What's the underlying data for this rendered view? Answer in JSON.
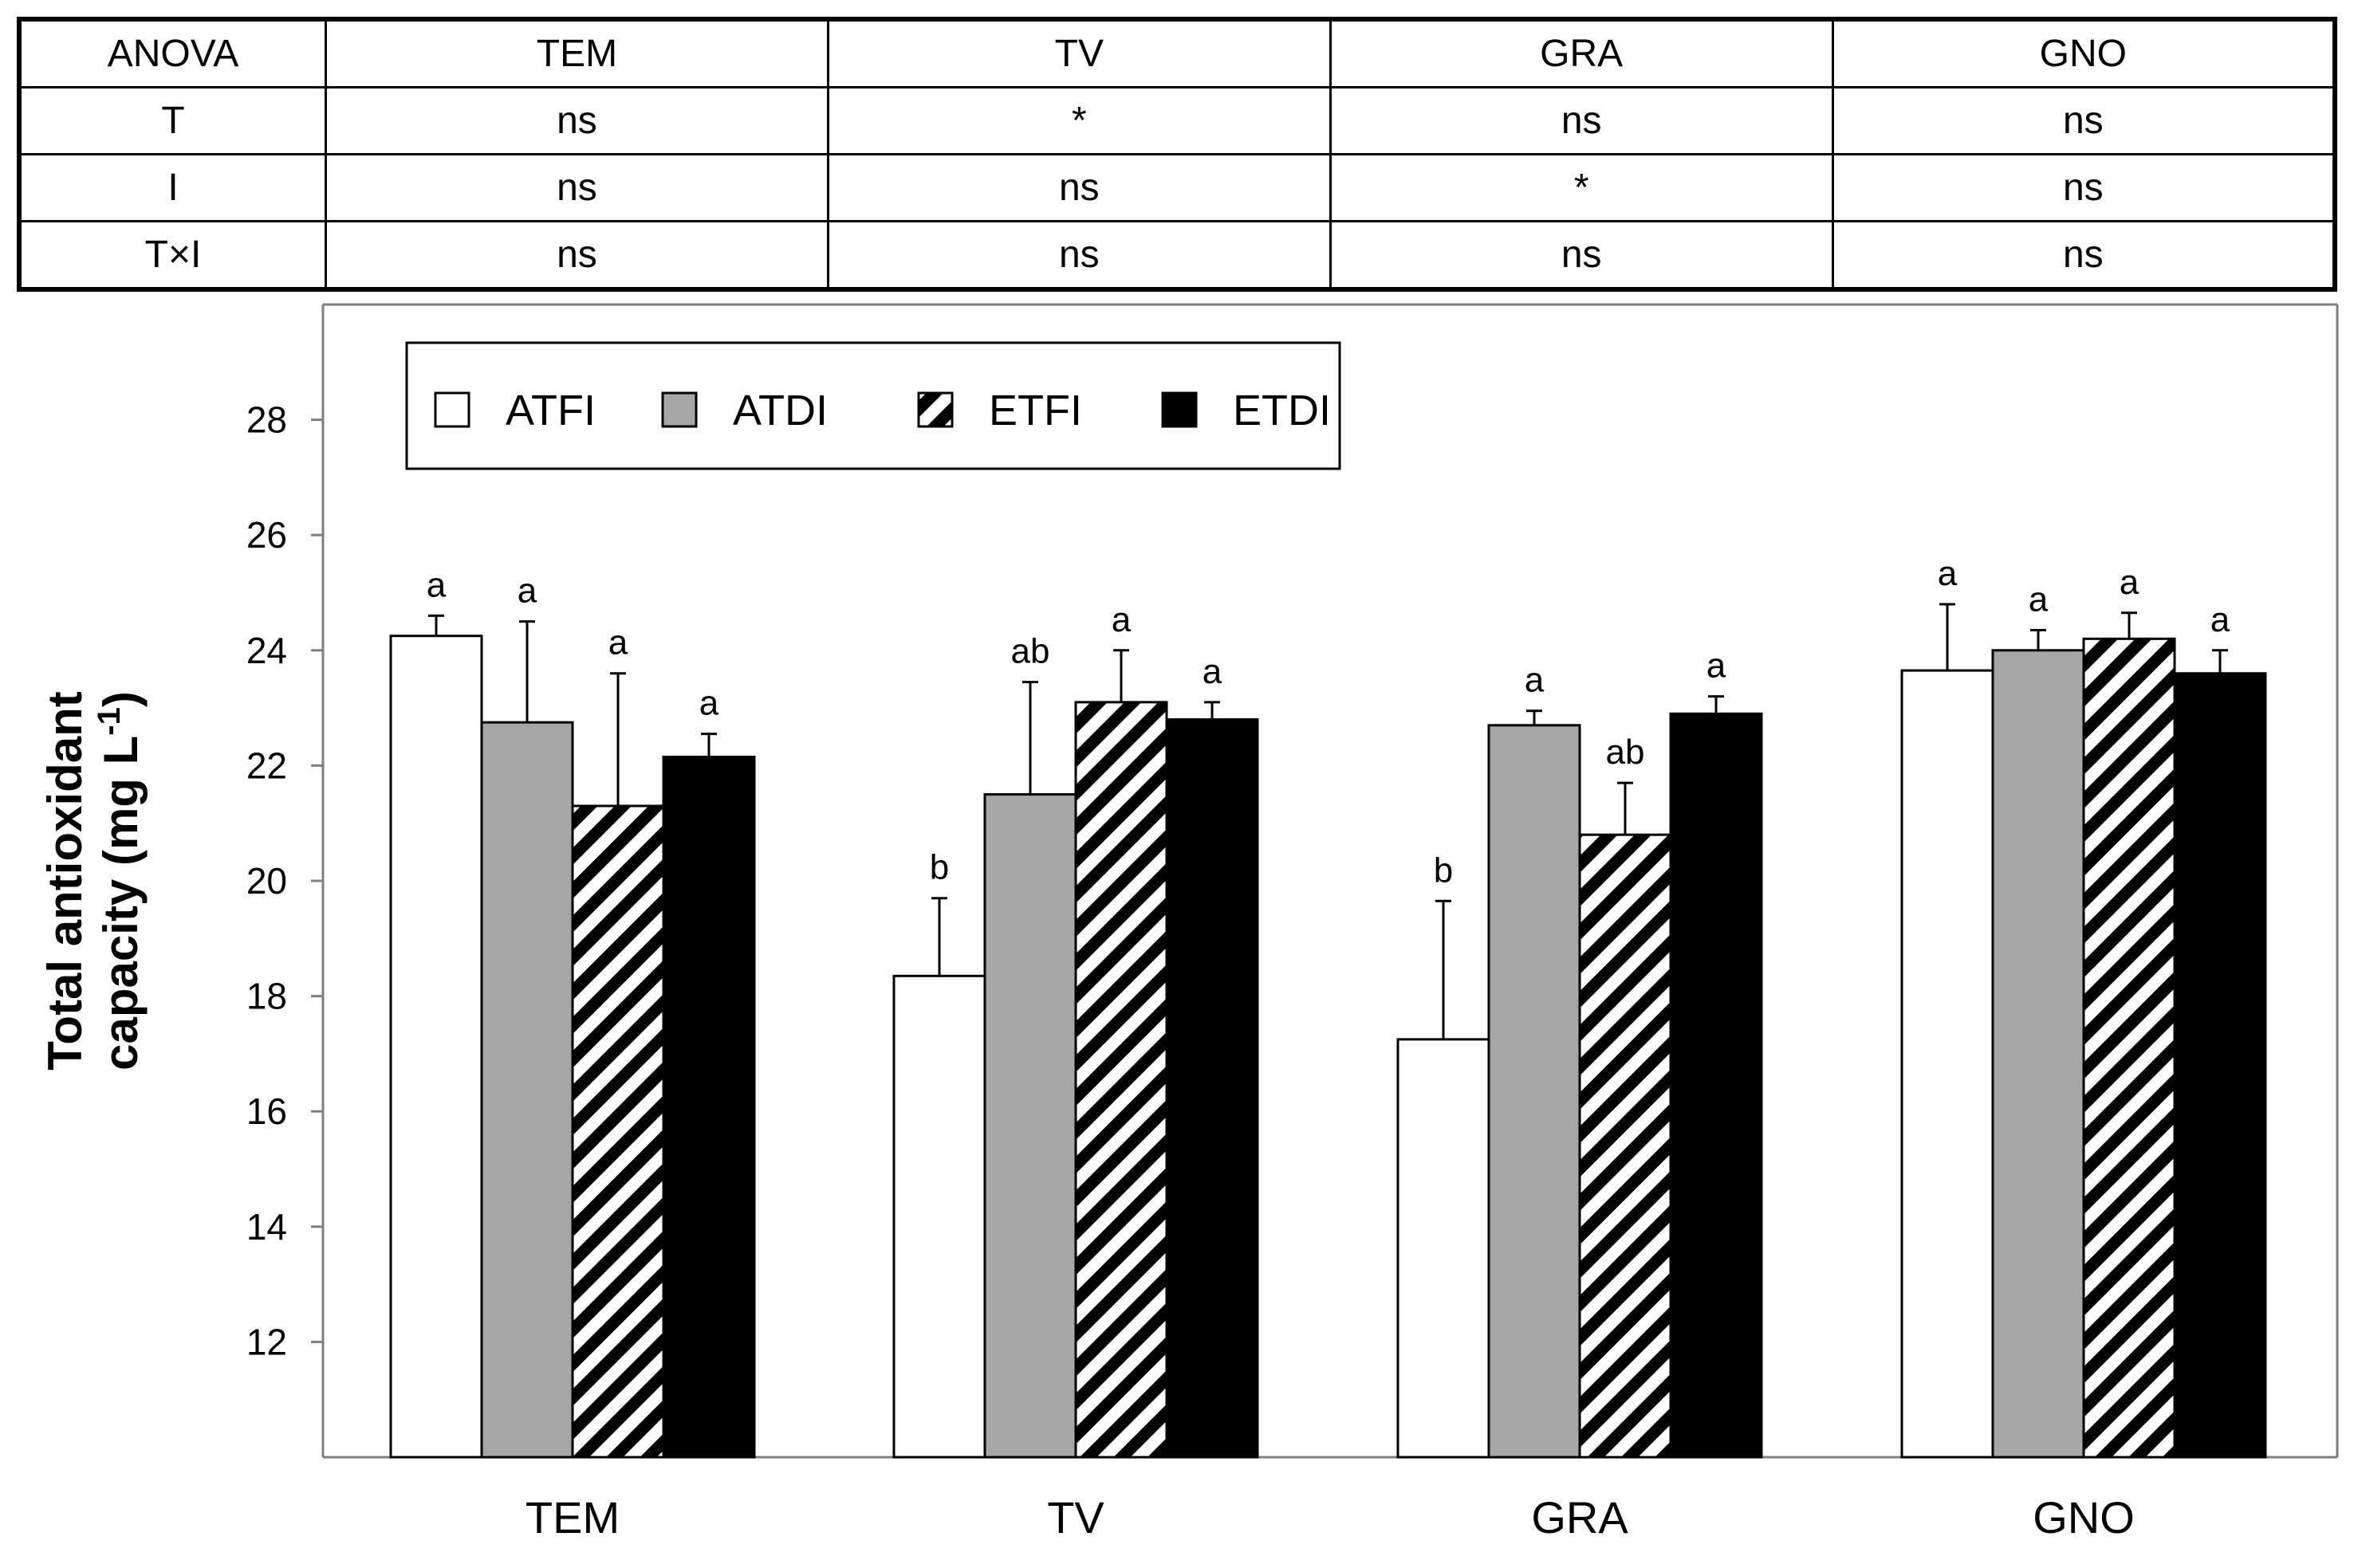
{
  "anova": {
    "header": [
      "ANOVA",
      "TEM",
      "TV",
      "GRA",
      "GNO"
    ],
    "rows": [
      [
        "T",
        "ns",
        "*",
        "ns",
        "ns"
      ],
      [
        "I",
        "ns",
        "ns",
        "*",
        "ns"
      ],
      [
        "T×I",
        "ns",
        "ns",
        "ns",
        "ns"
      ]
    ]
  },
  "chart_data": {
    "type": "bar",
    "title": "",
    "xlabel": "",
    "ylabel": "Total antioxidant capacity (mg L⁻¹)",
    "ylabel_line1": "Total antioxidant",
    "ylabel_line2_prefix": "capacity (mg L",
    "ylabel_line2_sup": "-1",
    "ylabel_line2_suffix": ")",
    "ylim": [
      10,
      30
    ],
    "yticks": [
      12,
      14,
      16,
      18,
      20,
      22,
      24,
      26,
      28
    ],
    "categories": [
      "TEM",
      "TV",
      "GRA",
      "GNO"
    ],
    "series": [
      {
        "name": "ATFI",
        "style": "white",
        "values": [
          24.25,
          18.35,
          17.25,
          23.65
        ],
        "errors": [
          0.35,
          1.35,
          2.4,
          1.15
        ],
        "letters": [
          "a",
          "b",
          "b",
          "a"
        ]
      },
      {
        "name": "ATDI",
        "style": "gray",
        "values": [
          22.75,
          21.5,
          22.7,
          24.0
        ],
        "errors": [
          1.75,
          1.95,
          0.25,
          0.35
        ],
        "letters": [
          "a",
          "ab",
          "a",
          "a"
        ]
      },
      {
        "name": "ETFI",
        "style": "hatch",
        "values": [
          21.3,
          23.1,
          20.8,
          24.2
        ],
        "errors": [
          2.3,
          0.9,
          0.9,
          0.45
        ],
        "letters": [
          "a",
          "a",
          "ab",
          "a"
        ]
      },
      {
        "name": "ETDI",
        "style": "black",
        "values": [
          22.15,
          22.8,
          22.9,
          23.6
        ],
        "errors": [
          0.4,
          0.3,
          0.3,
          0.4
        ],
        "letters": [
          "a",
          "a",
          "a",
          "a"
        ]
      }
    ],
    "legend_position": "top-left",
    "colors": {
      "white": "#ffffff",
      "gray": "#a6a6a6",
      "black": "#000000",
      "axis": "#7f7f7f"
    }
  }
}
